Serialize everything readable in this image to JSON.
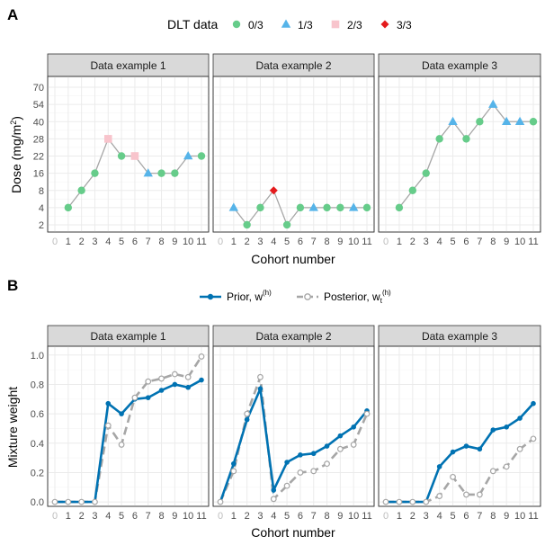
{
  "colors": {
    "dlt_0": "#66cc8a",
    "dlt_1": "#56b4e9",
    "dlt_2": "#f8c4cc",
    "dlt_3": "#e41a1c",
    "dose_line": "#a6a6a6",
    "prior": "#0072b2",
    "posterior": "#a6a6a6"
  },
  "chart_data": [
    {
      "panel_label": "A",
      "type": "line",
      "legend": {
        "title": "DLT data",
        "placement": "top",
        "entries": [
          {
            "label": "0/3",
            "shape": "circle",
            "color_key": "dlt_0"
          },
          {
            "label": "1/3",
            "shape": "triangle",
            "color_key": "dlt_1"
          },
          {
            "label": "2/3",
            "shape": "square",
            "color_key": "dlt_2"
          },
          {
            "label": "3/3",
            "shape": "diamond",
            "color_key": "dlt_3"
          }
        ]
      },
      "xlabel": "Cohort number",
      "ylabel_main": "Dose (mg/m",
      "ylabel_sup": "2",
      "ylabel_end": ")",
      "x_ticks": [
        "0",
        "1",
        "2",
        "3",
        "4",
        "5",
        "6",
        "7",
        "8",
        "9",
        "10",
        "11"
      ],
      "y_ticks": [
        "2",
        "4",
        "8",
        "16",
        "22",
        "28",
        "40",
        "54",
        "70"
      ],
      "facets": [
        {
          "title": "Data example 1",
          "x": [
            1,
            2,
            3,
            4,
            5,
            6,
            7,
            8,
            9,
            10,
            11
          ],
          "dose": [
            "4",
            "8",
            "16",
            "28",
            "22",
            "22",
            "16",
            "16",
            "16",
            "22",
            "22"
          ],
          "dlt": [
            0,
            0,
            0,
            2,
            0,
            2,
            1,
            0,
            0,
            1,
            0
          ]
        },
        {
          "title": "Data example 2",
          "x": [
            1,
            2,
            3,
            4,
            5,
            6,
            7,
            8,
            9,
            10,
            11
          ],
          "dose": [
            "4",
            "2",
            "4",
            "8",
            "2",
            "4",
            "4",
            "4",
            "4",
            "4",
            "4"
          ],
          "dlt": [
            1,
            0,
            0,
            3,
            0,
            0,
            1,
            0,
            0,
            1,
            0
          ]
        },
        {
          "title": "Data example 3",
          "x": [
            1,
            2,
            3,
            4,
            5,
            6,
            7,
            8,
            9,
            10,
            11
          ],
          "dose": [
            "4",
            "8",
            "16",
            "28",
            "40",
            "28",
            "40",
            "54",
            "40",
            "40",
            "40"
          ],
          "dlt": [
            0,
            0,
            0,
            0,
            1,
            0,
            0,
            1,
            1,
            1,
            0
          ]
        }
      ]
    },
    {
      "panel_label": "B",
      "type": "line",
      "legend": {
        "placement": "top",
        "entries": [
          {
            "label": "Prior, w",
            "sup": "(h)",
            "color_key": "prior",
            "style": "solid"
          },
          {
            "label": "Posterior, w",
            "sup": "(h)",
            "sub": "t",
            "color_key": "posterior",
            "style": "dashed"
          }
        ]
      },
      "xlabel": "Cohort number",
      "ylabel": "Mixture weight",
      "x_ticks": [
        "0",
        "1",
        "2",
        "3",
        "4",
        "5",
        "6",
        "7",
        "8",
        "9",
        "10",
        "11"
      ],
      "y_ticks": [
        "0.0",
        "0.2",
        "0.4",
        "0.6",
        "0.8",
        "1.0"
      ],
      "ylim": [
        -0.03,
        1.06
      ],
      "facets": [
        {
          "title": "Data example 1",
          "x": [
            0,
            1,
            2,
            3,
            4,
            5,
            6,
            7,
            8,
            9,
            10,
            11
          ],
          "prior": [
            0,
            0,
            0,
            0,
            0.67,
            0.6,
            0.7,
            0.71,
            0.76,
            0.8,
            0.78,
            0.83
          ],
          "posterior": [
            0,
            0,
            0,
            0,
            0.52,
            0.39,
            0.71,
            0.82,
            0.84,
            0.87,
            0.85,
            0.99
          ]
        },
        {
          "title": "Data example 2",
          "x": [
            0,
            1,
            2,
            3,
            4,
            5,
            6,
            7,
            8,
            9,
            10,
            11
          ],
          "prior": [
            0,
            0.26,
            0.56,
            0.77,
            0.08,
            0.27,
            0.32,
            0.33,
            0.38,
            0.45,
            0.51,
            0.62
          ],
          "posterior": [
            0,
            0.21,
            0.6,
            0.85,
            0.02,
            0.11,
            0.2,
            0.21,
            0.26,
            0.36,
            0.39,
            0.6
          ]
        },
        {
          "title": "Data example 3",
          "x": [
            0,
            1,
            2,
            3,
            4,
            5,
            6,
            7,
            8,
            9,
            10,
            11
          ],
          "prior": [
            0,
            0,
            0,
            0,
            0.24,
            0.34,
            0.38,
            0.36,
            0.49,
            0.51,
            0.57,
            0.67
          ],
          "posterior": [
            0,
            0,
            0,
            0,
            0.04,
            0.17,
            0.05,
            0.05,
            0.21,
            0.24,
            0.36,
            0.43
          ]
        }
      ]
    }
  ]
}
